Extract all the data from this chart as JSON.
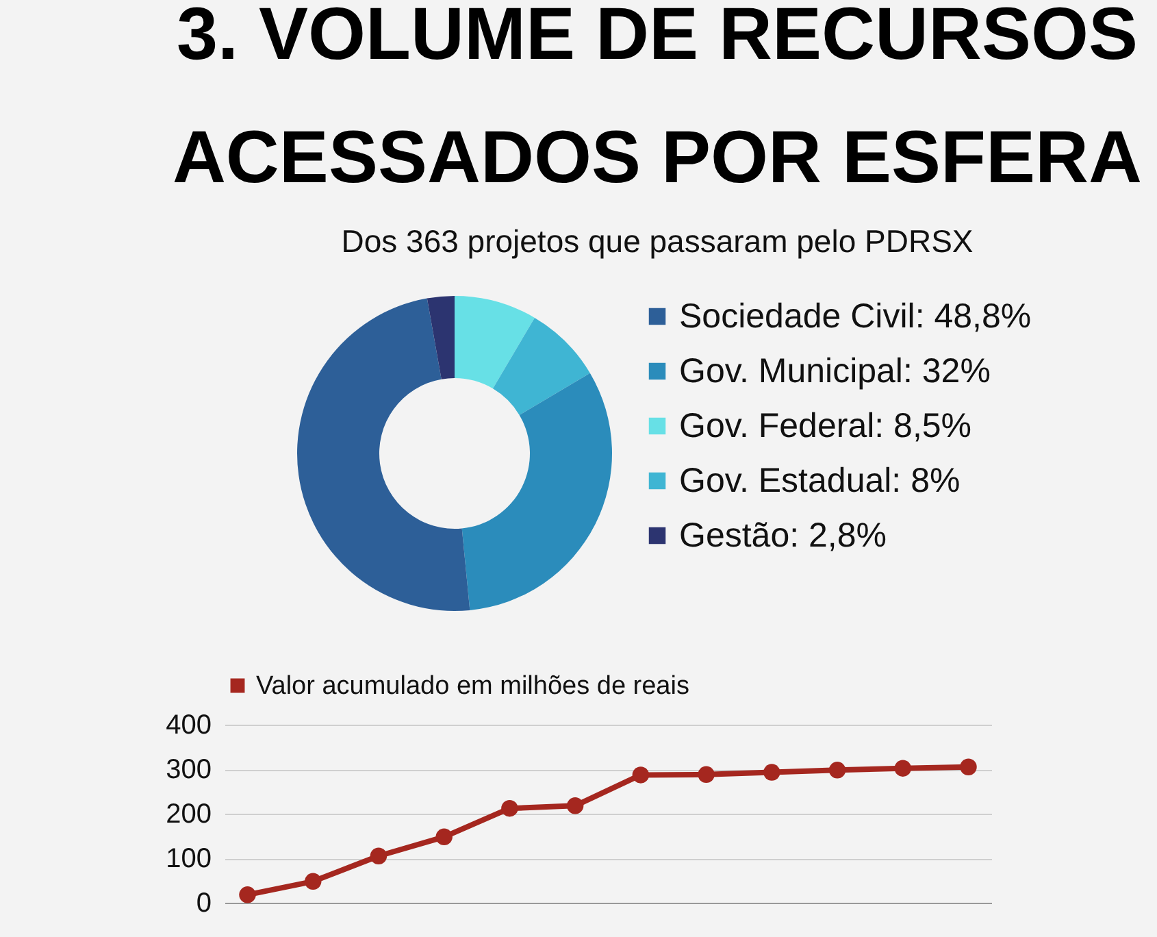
{
  "chart_data": [
    {
      "type": "donut",
      "title": "3. VOLUME DE RECURSOS ACESSADOS POR ESFERA",
      "subtitle": "Dos 363 projetos que passaram pelo PDRSX",
      "categories": [
        "Gov. Federal",
        "Gov. Estadual",
        "Gov. Municipal",
        "Sociedade Civil",
        "Gestão"
      ],
      "values": [
        8.5,
        8,
        32,
        48.8,
        2.8
      ],
      "value_labels": [
        "8,5%",
        "8%",
        "32%",
        "48,8%",
        "2,8%"
      ],
      "colors": [
        "#67e0e6",
        "#3fb5d3",
        "#2b8cbb",
        "#2d5f98",
        "#2c3470"
      ],
      "legend": "right"
    },
    {
      "type": "line",
      "categories": [
        null,
        null,
        null,
        null,
        null,
        null,
        null,
        null,
        null,
        null,
        null,
        null
      ],
      "series": [
        {
          "name": "Valor acumulado em milhões de reais",
          "color": "#a5271f",
          "values": [
            18,
            48,
            105,
            148,
            212,
            218,
            287,
            288,
            293,
            298,
            302,
            305
          ]
        }
      ],
      "ylim": [
        0,
        400
      ],
      "yticks": [
        0,
        100,
        200,
        300,
        400
      ],
      "grid": "y",
      "legend": "top",
      "marker": "circle",
      "tick_labels": "y"
    }
  ]
}
